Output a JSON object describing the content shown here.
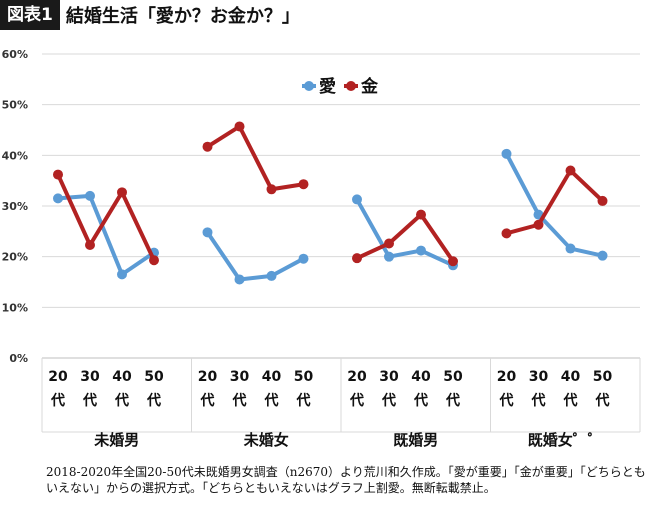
{
  "header": {
    "badge": "図表1",
    "title": "結婚生活「愛か？お金か？」"
  },
  "chart_data": {
    "type": "line",
    "title": "結婚生活「愛か？お金か？」",
    "ylim": [
      0,
      60
    ],
    "y_ticks": [
      "0%",
      "10%",
      "20%",
      "30%",
      "40%",
      "50%",
      "60%"
    ],
    "grid": true,
    "legend_position": "top-center",
    "groups": [
      {
        "name": "未婚男",
        "categories": [
          "20代",
          "30代",
          "40代",
          "50代"
        ]
      },
      {
        "name": "未婚女",
        "categories": [
          "20代",
          "30代",
          "40代",
          "50代"
        ]
      },
      {
        "name": "既婚男",
        "categories": [
          "20代",
          "30代",
          "40代",
          "50代"
        ]
      },
      {
        "name": "既婚女゜゜",
        "categories": [
          "20代",
          "30代",
          "40代",
          "50代"
        ]
      }
    ],
    "series": [
      {
        "name": "愛",
        "color": "#5b9bd5",
        "values": [
          [
            31.5,
            32.0,
            16.5,
            20.8
          ],
          [
            24.8,
            15.5,
            16.2,
            19.6
          ],
          [
            31.3,
            20.0,
            21.2,
            18.3
          ],
          [
            40.3,
            28.3,
            21.6,
            20.2
          ]
        ]
      },
      {
        "name": "金",
        "color": "#b22222",
        "values": [
          [
            36.2,
            22.3,
            32.7,
            19.3
          ],
          [
            41.7,
            45.7,
            33.3,
            34.3
          ],
          [
            19.7,
            22.6,
            28.3,
            19.1
          ],
          [
            24.6,
            26.3,
            37.0,
            31.0
          ]
        ]
      }
    ]
  },
  "footnote": "2018-2020年全国20-50代未既婚男女調査（n2670）より荒川和久作成。「愛が重要」「金が重要」「どちらともいえない」からの選択方式。「どちらともいえないはグラフ上割愛。無断転載禁止。"
}
